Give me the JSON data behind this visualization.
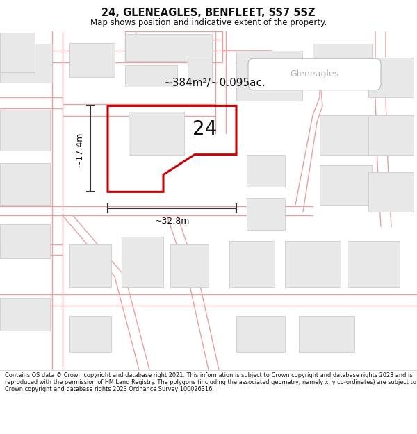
{
  "title": "24, GLENEAGLES, BENFLEET, SS7 5SZ",
  "subtitle": "Map shows position and indicative extent of the property.",
  "footer": "Contains OS data © Crown copyright and database right 2021. This information is subject to Crown copyright and database rights 2023 and is reproduced with the permission of HM Land Registry. The polygons (including the associated geometry, namely x, y co-ordinates) are subject to Crown copyright and database rights 2023 Ordnance Survey 100026316.",
  "area_label": "~384m²/~0.095ac.",
  "width_label": "~32.8m",
  "height_label": "~17.4m",
  "property_number": "24",
  "bg_color": "#ffffff",
  "road_line_color": "#e8a0a0",
  "building_fill": "#e8e8e8",
  "building_edge": "#cccccc",
  "plot_color": "#cc0000",
  "street_label": "Gleneagles",
  "street_label_color": "#b0b0b0",
  "dim_color": "#333333",
  "text_color": "#111111"
}
